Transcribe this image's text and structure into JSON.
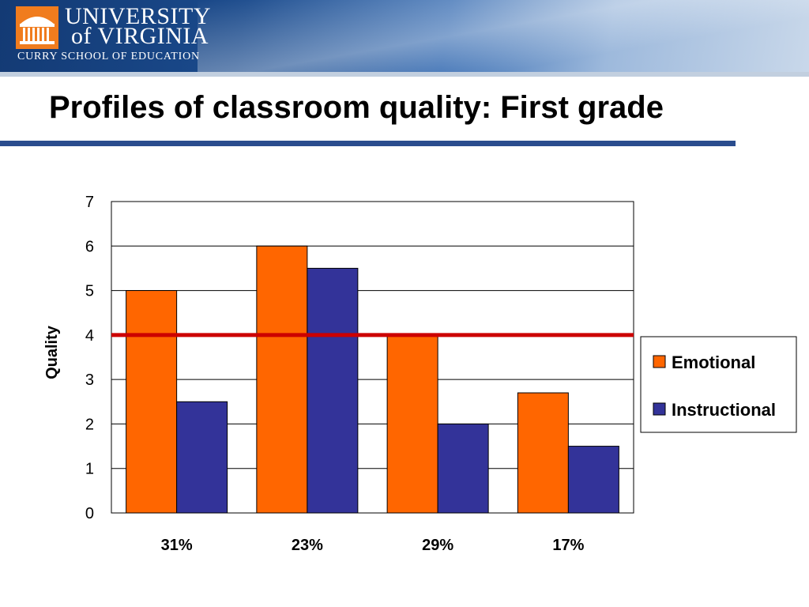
{
  "header": {
    "university_line1": "UNIVERSITY",
    "university_line2": "of VIRGINIA",
    "school": "CURRY SCHOOL OF EDUCATION"
  },
  "slide": {
    "title": "Profiles of classroom quality: First grade"
  },
  "colors": {
    "emotional": "#ff6600",
    "instructional": "#333399",
    "threshold_line": "#cc0000",
    "title_rule": "#2a4d8e"
  },
  "chart_data": {
    "type": "bar",
    "title": "",
    "xlabel": "",
    "ylabel": "Quality",
    "ylim": [
      0,
      7
    ],
    "yticks": [
      0,
      1,
      2,
      3,
      4,
      5,
      6,
      7
    ],
    "grid": true,
    "legend_position": "right",
    "categories": [
      "31%",
      "23%",
      "29%",
      "17%"
    ],
    "series": [
      {
        "name": "Emotional",
        "color": "#ff6600",
        "values": [
          5,
          6,
          4,
          2.7
        ]
      },
      {
        "name": "Instructional",
        "color": "#333399",
        "values": [
          2.5,
          5.5,
          2,
          1.5
        ]
      }
    ],
    "reference_line": {
      "y": 4,
      "color": "#cc0000"
    }
  }
}
